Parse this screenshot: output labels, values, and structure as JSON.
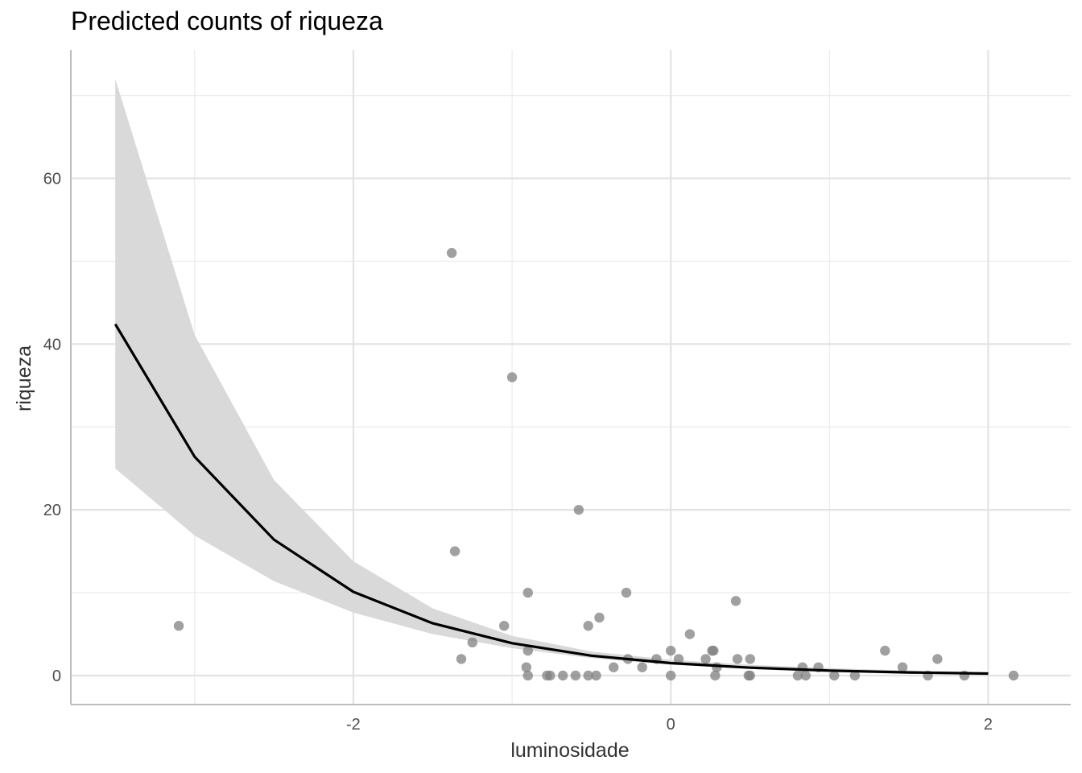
{
  "chart_data": {
    "type": "scatter",
    "title": "Predicted counts of riqueza",
    "xlabel": "luminosidade",
    "ylabel": "riqueza",
    "xlim": [
      -3.78,
      2.52
    ],
    "ylim": [
      -3.5,
      75.5
    ],
    "x_ticks": [
      {
        "value": -2,
        "label": "-2"
      },
      {
        "value": 0,
        "label": "0"
      },
      {
        "value": 2,
        "label": "2"
      }
    ],
    "y_ticks": [
      {
        "value": 0,
        "label": "0"
      },
      {
        "value": 20,
        "label": "20"
      },
      {
        "value": 40,
        "label": "40"
      },
      {
        "value": 60,
        "label": "60"
      }
    ],
    "x_minor_ticks": [
      -3,
      -1,
      1
    ],
    "y_minor_ticks": [
      10,
      30,
      50,
      70
    ],
    "grid": true,
    "series": [
      {
        "kind": "line",
        "color": "#000000",
        "x": [
          -3.5,
          -3.0,
          -2.5,
          -2.0,
          -1.5,
          -1.0,
          -0.5,
          0.0,
          0.5,
          1.0,
          1.5,
          2.0
        ],
        "y": [
          42.4,
          26.4,
          16.4,
          10.1,
          6.3,
          3.9,
          2.4,
          1.5,
          0.95,
          0.6,
          0.38,
          0.24
        ]
      },
      {
        "kind": "ribbon",
        "color": "#d9d9d9",
        "x": [
          -3.5,
          -3.0,
          -2.5,
          -2.0,
          -1.5,
          -1.0,
          -0.5,
          0.0,
          0.5,
          1.0,
          1.5,
          2.0
        ],
        "lower": [
          25.0,
          16.9,
          11.4,
          7.6,
          5.0,
          3.3,
          2.1,
          1.3,
          0.8,
          0.4,
          0.2,
          0.1
        ],
        "upper": [
          72.0,
          41.1,
          23.6,
          13.8,
          8.1,
          4.8,
          2.9,
          1.9,
          1.3,
          0.9,
          0.6,
          0.4
        ]
      },
      {
        "kind": "points",
        "color": "#808080",
        "points": [
          [
            -3.1,
            6
          ],
          [
            -1.38,
            51
          ],
          [
            -1.36,
            15
          ],
          [
            -1.32,
            2
          ],
          [
            -1.25,
            4
          ],
          [
            -1.05,
            6
          ],
          [
            -1.0,
            36
          ],
          [
            -0.9,
            10
          ],
          [
            -0.9,
            0
          ],
          [
            -0.9,
            3
          ],
          [
            -0.91,
            1
          ],
          [
            -0.78,
            0
          ],
          [
            -0.76,
            0
          ],
          [
            -0.68,
            0
          ],
          [
            -0.6,
            0
          ],
          [
            -0.58,
            20
          ],
          [
            -0.52,
            6
          ],
          [
            -0.52,
            0
          ],
          [
            -0.47,
            0
          ],
          [
            -0.45,
            7
          ],
          [
            -0.36,
            1
          ],
          [
            -0.28,
            10
          ],
          [
            -0.27,
            2
          ],
          [
            -0.18,
            1
          ],
          [
            -0.09,
            2
          ],
          [
            0.0,
            3
          ],
          [
            0.0,
            0
          ],
          [
            0.05,
            2
          ],
          [
            0.12,
            5
          ],
          [
            0.22,
            2
          ],
          [
            0.26,
            3
          ],
          [
            0.27,
            3
          ],
          [
            0.28,
            0
          ],
          [
            0.29,
            1
          ],
          [
            0.41,
            9
          ],
          [
            0.42,
            2
          ],
          [
            0.49,
            0
          ],
          [
            0.5,
            0
          ],
          [
            0.5,
            2
          ],
          [
            0.8,
            0
          ],
          [
            0.83,
            1
          ],
          [
            0.85,
            0
          ],
          [
            0.93,
            1
          ],
          [
            1.03,
            0
          ],
          [
            1.16,
            0
          ],
          [
            1.35,
            3
          ],
          [
            1.46,
            1
          ],
          [
            1.62,
            0
          ],
          [
            1.68,
            2
          ],
          [
            1.85,
            0
          ],
          [
            2.16,
            0
          ]
        ]
      }
    ]
  }
}
